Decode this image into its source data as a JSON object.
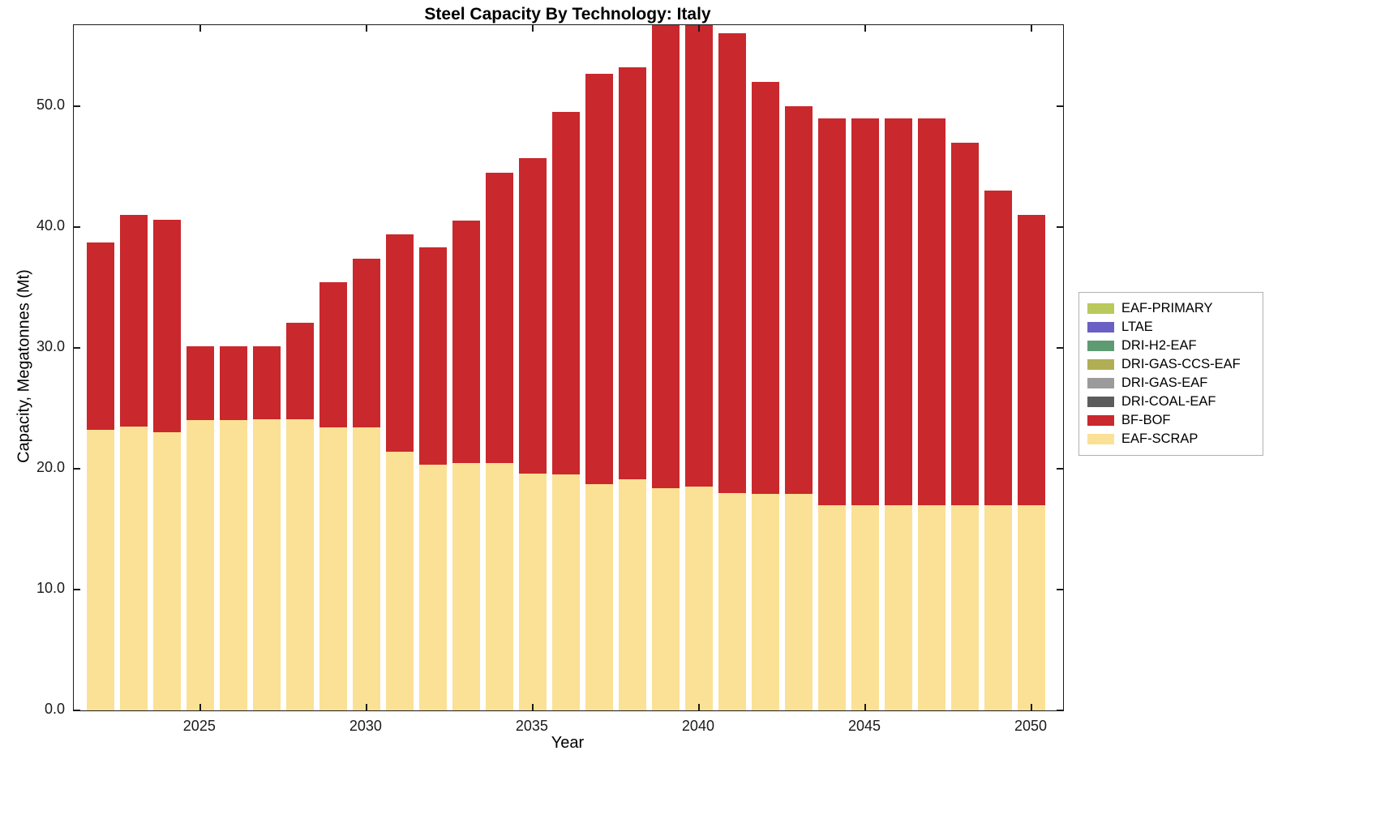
{
  "chart_data": {
    "type": "bar",
    "stacked": true,
    "title": "Steel Capacity By Technology: Italy",
    "xlabel": "Year",
    "ylabel": "Capacity, Megatonnes (Mt)",
    "x": [
      2022,
      2023,
      2024,
      2025,
      2026,
      2027,
      2028,
      2029,
      2030,
      2031,
      2032,
      2033,
      2034,
      2035,
      2036,
      2037,
      2038,
      2039,
      2040,
      2041,
      2042,
      2043,
      2044,
      2045,
      2046,
      2047,
      2048,
      2049,
      2050
    ],
    "series": [
      {
        "name": "EAF-SCRAP",
        "color": "#fbe195",
        "values": [
          23.2,
          23.5,
          23.0,
          24.0,
          24.0,
          24.1,
          24.1,
          23.4,
          23.4,
          21.4,
          20.3,
          20.5,
          20.5,
          19.6,
          19.5,
          18.7,
          19.1,
          18.4,
          18.5,
          18.0,
          17.9,
          17.9,
          17.0,
          17.0,
          17.0,
          17.0,
          17.0,
          17.0,
          17.0
        ]
      },
      {
        "name": "BF-BOF",
        "color": "#c9282d",
        "values": [
          15.5,
          17.5,
          17.6,
          6.1,
          6.1,
          6.0,
          8.0,
          12.0,
          14.0,
          18.0,
          18.0,
          20.0,
          24.0,
          26.1,
          30.0,
          34.0,
          34.1,
          38.3,
          38.2,
          38.0,
          34.1,
          32.1,
          32.0,
          32.0,
          32.0,
          32.0,
          30.0,
          26.0,
          24.0
        ]
      }
    ],
    "legend": [
      {
        "label": "EAF-PRIMARY",
        "color": "#b9c95c"
      },
      {
        "label": "LTAE",
        "color": "#6a5fc4"
      },
      {
        "label": "DRI-H2-EAF",
        "color": "#5d9b73"
      },
      {
        "label": "DRI-GAS-CCS-EAF",
        "color": "#b1ae55"
      },
      {
        "label": "DRI-GAS-EAF",
        "color": "#9b9b9b"
      },
      {
        "label": "DRI-COAL-EAF",
        "color": "#5c5c5c"
      },
      {
        "label": "BF-BOF",
        "color": "#c9282d"
      },
      {
        "label": "EAF-SCRAP",
        "color": "#fbe195"
      }
    ],
    "legend_position": "right-outside",
    "grid": false,
    "xlim": [
      2021.2,
      2050.95
    ],
    "ylim": [
      0,
      56.7
    ],
    "xticks": [
      2025,
      2030,
      2035,
      2040,
      2045,
      2050
    ],
    "xtick_labels": [
      "2025",
      "2030",
      "2035",
      "2040",
      "2045",
      "2050"
    ],
    "yticks": [
      0,
      10,
      20,
      30,
      40,
      50
    ],
    "ytick_labels": [
      "0.0",
      "10.0",
      "20.0",
      "30.0",
      "40.0",
      "50.0"
    ]
  }
}
